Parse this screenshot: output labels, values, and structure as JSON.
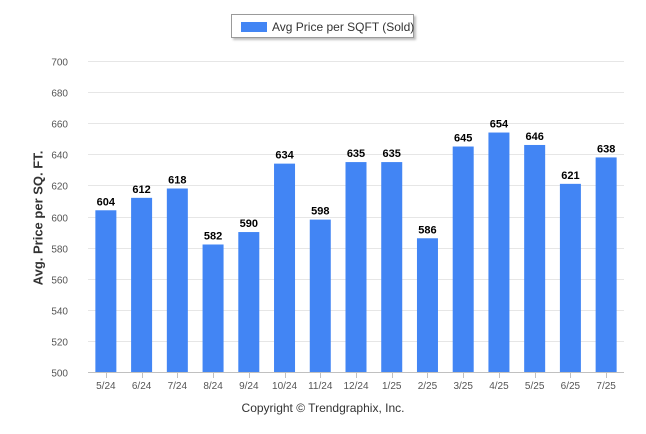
{
  "chart_data": {
    "type": "bar",
    "categories": [
      "5/24",
      "6/24",
      "7/24",
      "8/24",
      "9/24",
      "10/24",
      "11/24",
      "12/24",
      "1/25",
      "2/25",
      "3/25",
      "4/25",
      "5/25",
      "6/25",
      "7/25"
    ],
    "series": [
      {
        "name": "Avg Price per SQFT (Sold)",
        "values": [
          604,
          612,
          618,
          582,
          590,
          634,
          598,
          635,
          635,
          586,
          645,
          654,
          646,
          621,
          638
        ]
      }
    ],
    "ylabel": "Avg. Price per SQ. FT.",
    "xlabel": "",
    "ylim": [
      500,
      700
    ],
    "yticks": [
      500,
      520,
      540,
      560,
      580,
      600,
      620,
      640,
      660,
      680,
      700
    ],
    "grid": true,
    "legend": "top-center",
    "data_labels": true,
    "bar_color": "#4285f4"
  },
  "footer": {
    "copyright": "Copyright © Trendgraphix, Inc."
  }
}
